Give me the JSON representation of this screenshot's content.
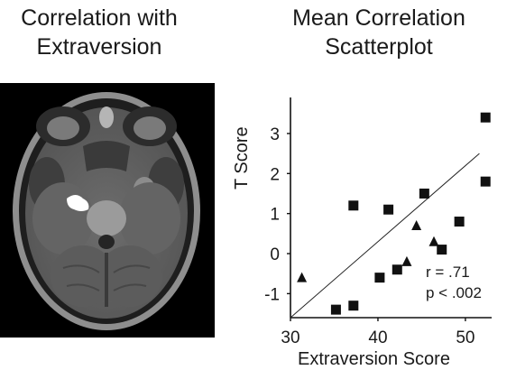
{
  "figure": {
    "left_title_line1": "Correlation with",
    "left_title_line2": "Extraversion",
    "right_title_line1": "Mean Correlation",
    "right_title_line2": "Scatterplot"
  },
  "brain_image": {
    "description": "axial MRI slice",
    "highlight_color": "#ffffff"
  },
  "chart_data": {
    "type": "scatter",
    "xlabel": "Extraversion Score",
    "ylabel": "T Score",
    "xlim": [
      30,
      53
    ],
    "ylim": [
      -1.6,
      3.9
    ],
    "x_ticks": [
      30,
      40,
      50
    ],
    "y_ticks": [
      -1,
      0,
      1,
      2,
      3
    ],
    "grid": false,
    "series": [
      {
        "marker": "square",
        "points": [
          {
            "x": 52.3,
            "y": 3.4
          },
          {
            "x": 52.3,
            "y": 1.8
          },
          {
            "x": 49.3,
            "y": 0.8
          },
          {
            "x": 45.3,
            "y": 1.5
          },
          {
            "x": 41.2,
            "y": 1.1
          },
          {
            "x": 37.2,
            "y": 1.2
          },
          {
            "x": 47.3,
            "y": 0.1
          },
          {
            "x": 42.2,
            "y": -0.4
          },
          {
            "x": 40.2,
            "y": -0.6
          },
          {
            "x": 37.2,
            "y": -1.3
          },
          {
            "x": 35.2,
            "y": -1.4
          }
        ]
      },
      {
        "marker": "triangle",
        "points": [
          {
            "x": 31.3,
            "y": -0.6
          },
          {
            "x": 44.4,
            "y": 0.7
          },
          {
            "x": 46.4,
            "y": 0.3
          },
          {
            "x": 43.3,
            "y": -0.2
          }
        ]
      }
    ],
    "trendline": {
      "x1": 30.0,
      "y1": -1.6,
      "x2": 51.6,
      "y2": 2.5
    },
    "annotation_r": "r = .71",
    "annotation_p": "p < .002",
    "tick_labels_x": [
      "30",
      "40",
      "50"
    ],
    "tick_labels_y": [
      "-1",
      "0",
      "1",
      "2",
      "3"
    ]
  }
}
